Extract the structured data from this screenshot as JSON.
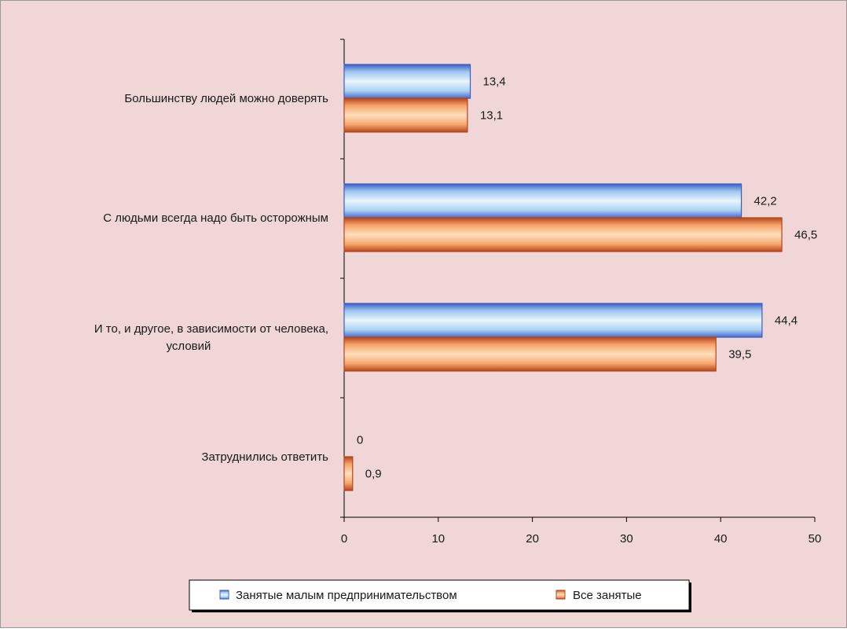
{
  "chart_data": {
    "type": "bar",
    "orientation": "horizontal",
    "categories": [
      [
        "Большинству людей можно доверять"
      ],
      [
        "С людьми всегда надо быть осторожным"
      ],
      [
        "И то, и другое, в зависимости от человека,",
        "условий"
      ],
      [
        "Затруднились ответить"
      ]
    ],
    "series": [
      {
        "name": "Занятые малым предпринимательством",
        "values": [
          13.4,
          42.2,
          44.4,
          0
        ],
        "labels": [
          "13,4",
          "42,2",
          "44,4",
          "0"
        ]
      },
      {
        "name": "Все занятые",
        "values": [
          13.1,
          46.5,
          39.5,
          0.9
        ],
        "labels": [
          "13,1",
          "46,5",
          "39,5",
          "0,9"
        ]
      }
    ],
    "xlim": [
      0,
      50
    ],
    "xticks": [
      "0",
      "10",
      "20",
      "30",
      "40",
      "50"
    ],
    "legend_position": "bottom",
    "grid": false,
    "colors": {
      "background": "#f0d6d6",
      "border": "#9a9a9a",
      "series1_fill": "#d4ecf9",
      "series1_edge": "#3b5cc4",
      "series2_fill": "#fcc28e",
      "series2_edge": "#b4441e"
    }
  }
}
